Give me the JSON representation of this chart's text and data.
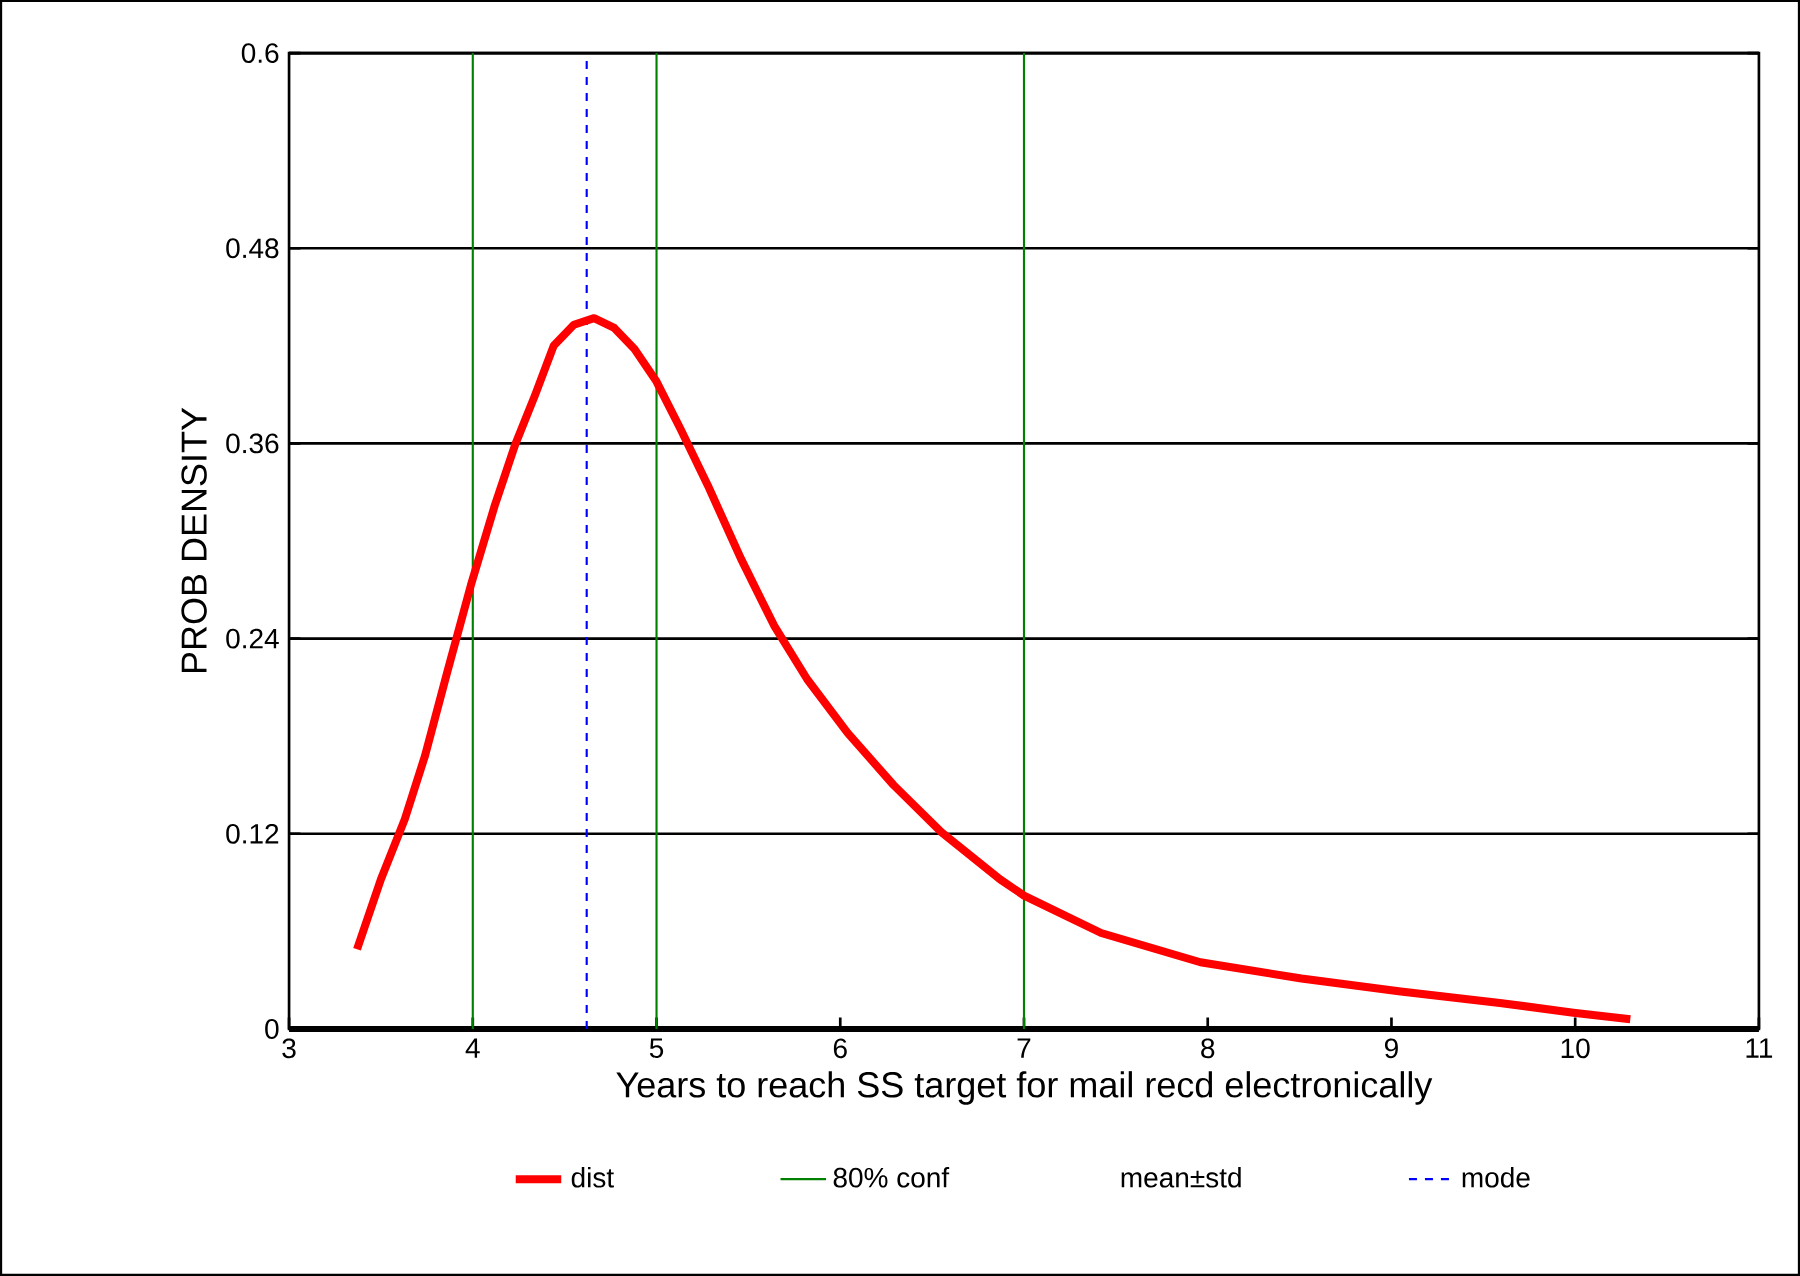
{
  "chart_data": {
    "type": "line",
    "xlabel": "Years to reach SS target for mail recd electronically",
    "ylabel": "PROB DENSITY",
    "xlim": [
      3,
      11
    ],
    "xticks": [
      3,
      4,
      5,
      6,
      7,
      8,
      9,
      10,
      11
    ],
    "ylim": [
      0,
      0.6
    ],
    "yticks": [
      0,
      0.12,
      0.24,
      0.36,
      0.48,
      0.6
    ],
    "grid": "y",
    "legend": "bottom",
    "series": [
      {
        "name": "dist",
        "color": "#ff0000",
        "line_style": "solid",
        "x": [
          3.37,
          3.5,
          3.63,
          3.74,
          3.86,
          3.99,
          4.12,
          4.23,
          4.34,
          4.44,
          4.55,
          4.66,
          4.77,
          4.88,
          5.0,
          5.13,
          5.28,
          5.46,
          5.64,
          5.82,
          6.04,
          6.29,
          6.55,
          6.87,
          7.0,
          7.42,
          7.96,
          8.51,
          9.05,
          9.59,
          9.99,
          10.3
        ],
        "values": [
          0.049,
          0.092,
          0.129,
          0.168,
          0.219,
          0.273,
          0.322,
          0.359,
          0.39,
          0.42,
          0.433,
          0.437,
          0.431,
          0.418,
          0.398,
          0.369,
          0.334,
          0.289,
          0.248,
          0.215,
          0.182,
          0.15,
          0.121,
          0.092,
          0.082,
          0.059,
          0.041,
          0.031,
          0.023,
          0.016,
          0.01,
          0.006
        ]
      },
      {
        "name": "80% conf",
        "color": "#008000",
        "line_style": "solid"
      },
      {
        "name": "mean±std"
      },
      {
        "name": "mode",
        "color": "#0000ff",
        "line_style": "dashed"
      }
    ],
    "ref_lines": [
      {
        "axis": "x",
        "value": 4,
        "color": "#008000",
        "line_style": "solid"
      },
      {
        "axis": "x",
        "value": 5,
        "color": "#008000",
        "line_style": "solid"
      },
      {
        "axis": "x",
        "value": 7,
        "color": "#008000",
        "line_style": "solid"
      },
      {
        "axis": "x",
        "value": 4.62,
        "color": "#0000ff",
        "line_style": "dashed"
      }
    ]
  }
}
